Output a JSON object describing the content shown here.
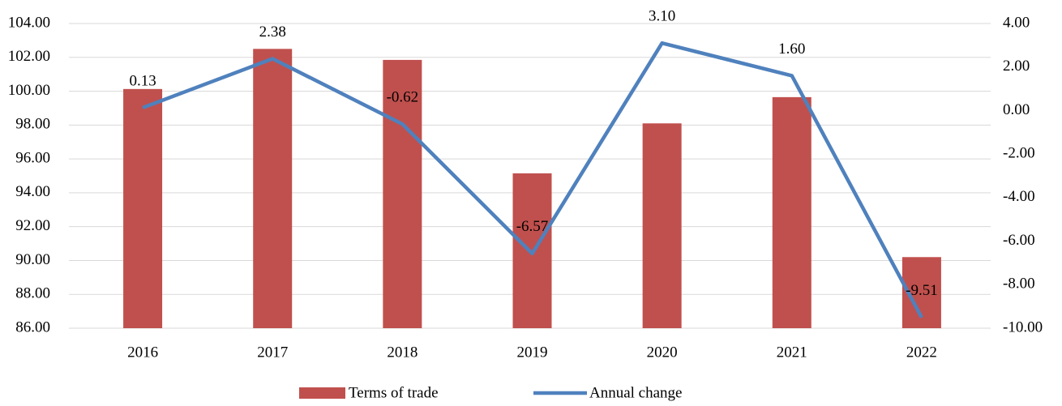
{
  "chart_data": {
    "type": "bar",
    "categories": [
      "2016",
      "2017",
      "2018",
      "2019",
      "2020",
      "2021",
      "2022"
    ],
    "series": [
      {
        "name": "Terms of trade",
        "type": "bar",
        "color": "#c0504d",
        "values": [
          100.13,
          102.5,
          101.85,
          95.15,
          98.1,
          99.65,
          90.2
        ]
      },
      {
        "name": "Annual change",
        "type": "line",
        "axis": "y2",
        "color": "#4f81bd",
        "values": [
          0.13,
          2.38,
          -0.62,
          -6.57,
          3.1,
          1.6,
          -9.51
        ],
        "value_labels": [
          "0.13",
          "2.38",
          "-0.62",
          "-6.57",
          "3.10",
          "1.60",
          "-9.51"
        ]
      }
    ],
    "ylim": [
      86,
      104
    ],
    "yticks": [
      {
        "value": 86,
        "label": "86.00"
      },
      {
        "value": 88,
        "label": "88.00"
      },
      {
        "value": 90,
        "label": "90.00"
      },
      {
        "value": 92,
        "label": "92.00"
      },
      {
        "value": 94,
        "label": "94.00"
      },
      {
        "value": 96,
        "label": "96.00"
      },
      {
        "value": 98,
        "label": "98.00"
      },
      {
        "value": 100,
        "label": "100.00"
      },
      {
        "value": 102,
        "label": "102.00"
      },
      {
        "value": 104,
        "label": "104.00"
      }
    ],
    "y2lim": [
      -10,
      4
    ],
    "y2ticks": [
      {
        "value": -10,
        "label": "-10.00"
      },
      {
        "value": -8,
        "label": "-8.00"
      },
      {
        "value": -6,
        "label": "-6.00"
      },
      {
        "value": -4,
        "label": "-4.00"
      },
      {
        "value": -2,
        "label": "-2.00"
      },
      {
        "value": 0,
        "label": "0.00"
      },
      {
        "value": 2,
        "label": "2.00"
      },
      {
        "value": 4,
        "label": "4.00"
      }
    ],
    "grid": true,
    "legend": "bottom"
  }
}
